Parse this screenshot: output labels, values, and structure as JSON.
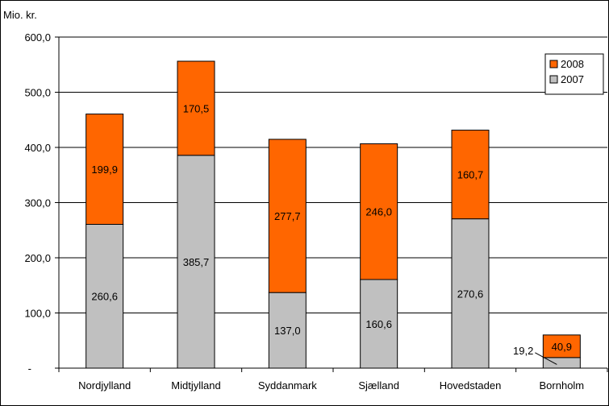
{
  "chart_data": {
    "type": "bar",
    "stacked": true,
    "ylabel": "Mio. kr.",
    "ylim": [
      0,
      600
    ],
    "y_ticks": [
      {
        "value": 0,
        "label": "-"
      },
      {
        "value": 100,
        "label": "100,0"
      },
      {
        "value": 200,
        "label": "200,0"
      },
      {
        "value": 300,
        "label": "300,0"
      },
      {
        "value": 400,
        "label": "400,0"
      },
      {
        "value": 500,
        "label": "500,0"
      },
      {
        "value": 600,
        "label": "600,0"
      }
    ],
    "grid": true,
    "legend": "top-right",
    "categories": [
      "Nordjylland",
      "Midtjylland",
      "Syddanmark",
      "Sjælland",
      "Hovedstaden",
      "Bornholm"
    ],
    "series": [
      {
        "name": "2007",
        "color": "#c0c0c0",
        "values": [
          260.6,
          385.7,
          137.0,
          160.6,
          270.6,
          19.2
        ],
        "labels": [
          "260,6",
          "385,7",
          "137,0",
          "160,6",
          "270,6",
          "19,2"
        ]
      },
      {
        "name": "2008",
        "color": "#ff6600",
        "values": [
          199.9,
          170.5,
          277.7,
          246.0,
          160.7,
          40.9
        ],
        "labels": [
          "199,9",
          "170,5",
          "277,7",
          "246,0",
          "160,7",
          "40,9"
        ]
      }
    ]
  }
}
